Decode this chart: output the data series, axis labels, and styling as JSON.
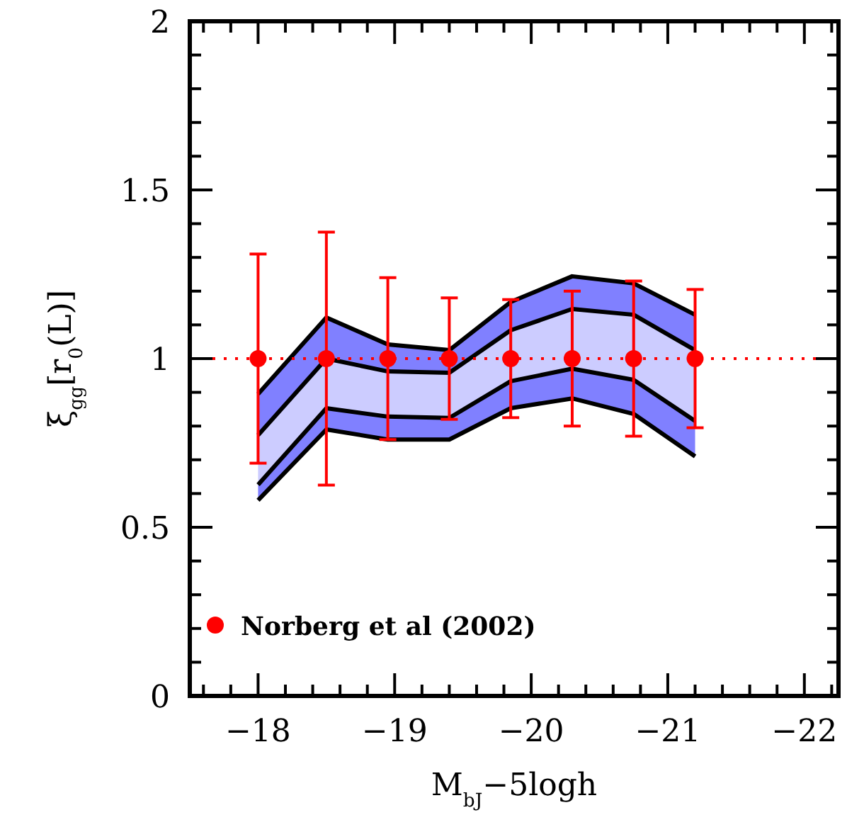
{
  "chart_data": {
    "type": "scatter",
    "xlabel": "M$_{bJ}$−5logh",
    "ylabel": "ξ$_{gg}$[r$_{0}$(L)]",
    "xlim": [
      -17.5,
      -22.25
    ],
    "ylim": [
      0,
      2
    ],
    "xticks": [
      {
        "value": -17.6,
        "label": null
      },
      {
        "value": -17.8,
        "label": null
      },
      {
        "value": -18,
        "label": "−18"
      },
      {
        "value": -18.2,
        "label": null
      },
      {
        "value": -18.4,
        "label": null
      },
      {
        "value": -18.6,
        "label": null
      },
      {
        "value": -18.8,
        "label": null
      },
      {
        "value": -19,
        "label": "−19"
      },
      {
        "value": -19.2,
        "label": null
      },
      {
        "value": -19.4,
        "label": null
      },
      {
        "value": -19.6,
        "label": null
      },
      {
        "value": -19.8,
        "label": null
      },
      {
        "value": -20,
        "label": "−20"
      },
      {
        "value": -20.2,
        "label": null
      },
      {
        "value": -20.4,
        "label": null
      },
      {
        "value": -20.6,
        "label": null
      },
      {
        "value": -20.8,
        "label": null
      },
      {
        "value": -21,
        "label": "−21"
      },
      {
        "value": -21.2,
        "label": null
      },
      {
        "value": -21.4,
        "label": null
      },
      {
        "value": -21.6,
        "label": null
      },
      {
        "value": -21.8,
        "label": null
      },
      {
        "value": -22,
        "label": "−22"
      },
      {
        "value": -22.2,
        "label": null
      }
    ],
    "yticks": [
      0,
      {
        "value": 0.1,
        "label": null
      },
      {
        "value": 0.2,
        "label": null
      },
      {
        "value": 0.3,
        "label": null
      },
      {
        "value": 0.4,
        "label": null
      },
      0.5,
      {
        "value": 0.6,
        "label": null
      },
      {
        "value": 0.7,
        "label": null
      },
      {
        "value": 0.8,
        "label": null
      },
      {
        "value": 0.9,
        "label": null
      },
      1,
      {
        "value": 1.1,
        "label": null
      },
      {
        "value": 1.2,
        "label": null
      },
      {
        "value": 1.3,
        "label": null
      },
      {
        "value": 1.4,
        "label": null
      },
      1.5,
      {
        "value": 1.6,
        "label": null
      },
      {
        "value": 1.7,
        "label": null
      },
      {
        "value": 1.8,
        "label": null
      },
      {
        "value": 1.9,
        "label": null
      },
      2
    ],
    "grid": false,
    "legend": "bottom left",
    "ref_lines": [
      {
        "axis": "y",
        "value": 1,
        "color": "#ff0000",
        "line_style": "dotted"
      }
    ],
    "series": [
      {
        "type": "line",
        "color": "#000000",
        "x": [
          -18,
          -18.5,
          -18.95,
          -19.4,
          -19.85,
          -20.3,
          -20.75,
          -21.2
        ],
        "values": [
          0.895,
          1.122,
          1.042,
          1.025,
          1.168,
          1.244,
          1.223,
          1.13
        ]
      },
      {
        "type": "line",
        "color": "#000000",
        "x": [
          -18,
          -18.5,
          -18.95,
          -19.4,
          -19.85,
          -20.3,
          -20.75,
          -21.2
        ],
        "values": [
          0.773,
          1.0,
          0.962,
          0.958,
          1.084,
          1.147,
          1.13,
          1.025
        ]
      },
      {
        "type": "line",
        "color": "#000000",
        "x": [
          -18,
          -18.5,
          -18.95,
          -19.4,
          -19.85,
          -20.3,
          -20.75,
          -21.2
        ],
        "values": [
          0.626,
          0.853,
          0.828,
          0.824,
          0.933,
          0.97,
          0.937,
          0.815
        ]
      },
      {
        "type": "line",
        "color": "#000000",
        "x": [
          -18,
          -18.5,
          -18.95,
          -19.4,
          -19.85,
          -20.3,
          -20.75,
          -21.2
        ],
        "values": [
          0.58,
          0.79,
          0.76,
          0.76,
          0.853,
          0.882,
          0.836,
          0.71
        ]
      },
      {
        "type": "scatter",
        "name": "Norberg et al (2002)",
        "color": "#ff0000",
        "marker": "circle",
        "x": [
          -18,
          -18.5,
          -18.95,
          -19.4,
          -19.85,
          -20.3,
          -20.75,
          -21.2
        ],
        "values": [
          1,
          1,
          1,
          1,
          1,
          1,
          1,
          1
        ],
        "errors": [
          0.31,
          0.375,
          0.24,
          0.18,
          0.175,
          0.2,
          0.23,
          0.205
        ]
      }
    ]
  }
}
